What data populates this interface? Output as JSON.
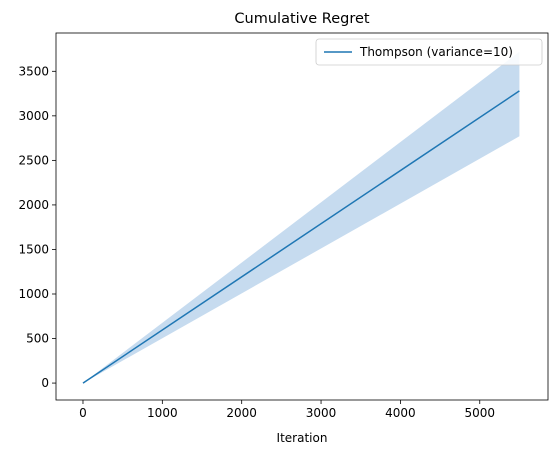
{
  "chart_data": {
    "type": "line",
    "title": "Cumulative Regret",
    "xlabel": "Iteration",
    "ylabel": "",
    "xlim": [
      -340,
      5860
    ],
    "ylim": [
      -190,
      3930
    ],
    "x_ticks": [
      0,
      1000,
      2000,
      3000,
      4000,
      5000
    ],
    "y_ticks": [
      0,
      500,
      1000,
      1500,
      2000,
      2500,
      3000,
      3500
    ],
    "grid": false,
    "legend": {
      "placement": "top-right",
      "entries": [
        "Thompson (variance=10)"
      ]
    },
    "series": [
      {
        "name": "Thompson (variance=10)",
        "color": "#1f77b4",
        "band_color": "#c6dbef",
        "x": [
          0,
          5500
        ],
        "y": [
          0,
          3280
        ],
        "band_lower": [
          0,
          2770
        ],
        "band_upper": [
          0,
          3720
        ]
      }
    ]
  }
}
